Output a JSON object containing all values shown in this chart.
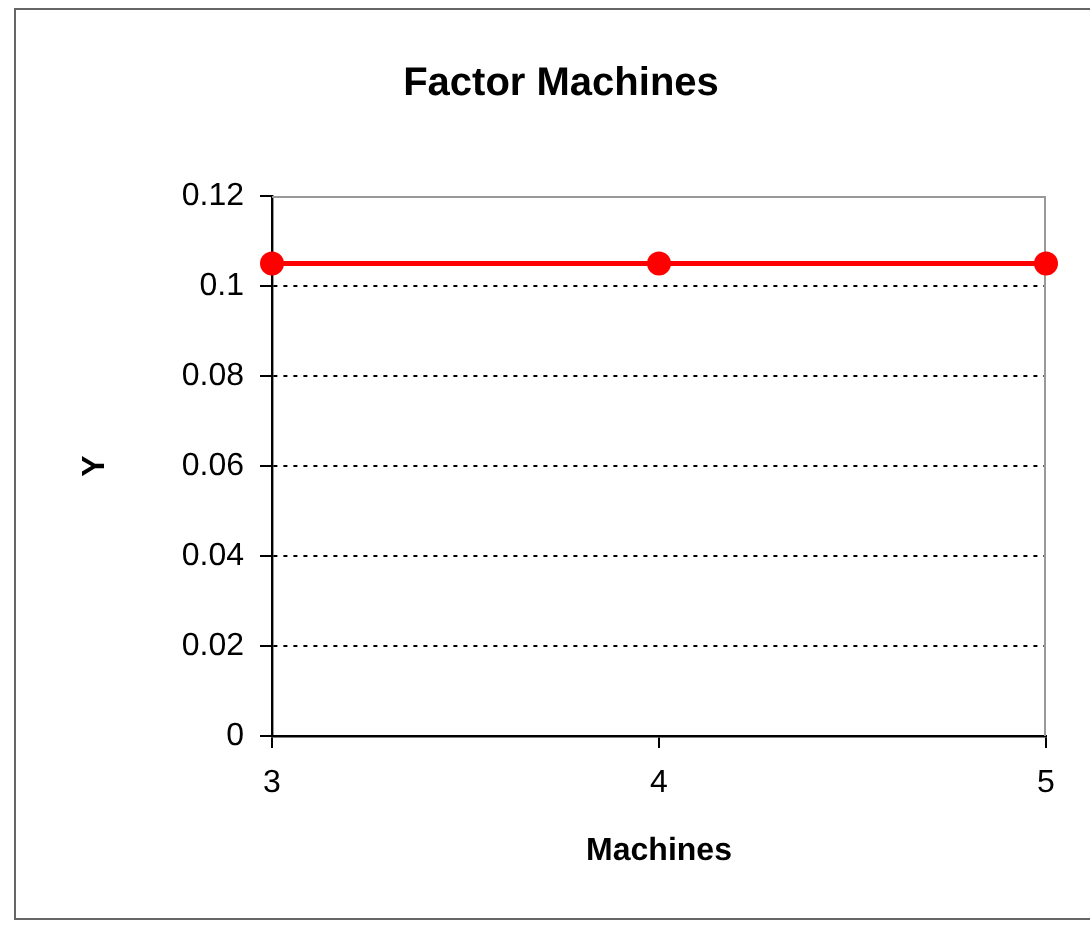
{
  "chart_data": {
    "type": "line",
    "title": "Factor Machines",
    "xlabel": "Machines",
    "ylabel": "Y",
    "x": [
      3,
      4,
      5
    ],
    "series": [
      {
        "color": "#ff0000",
        "values": [
          0.105,
          0.105,
          0.105
        ]
      }
    ],
    "xlim": [
      3,
      5
    ],
    "xticks": [
      3,
      4,
      5
    ],
    "ylim": [
      0,
      0.12
    ],
    "yticks": [
      0,
      0.02,
      0.04,
      0.06,
      0.08,
      0.1,
      0.12
    ],
    "grid": "y",
    "marker": "circle",
    "legend": false
  }
}
